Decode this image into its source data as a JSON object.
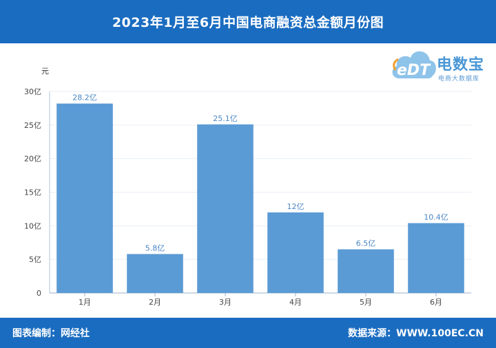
{
  "header": {
    "title": "2023年1月至6月中国电商融资总金额月份图"
  },
  "footer": {
    "left": "图表编制：网经社",
    "right": "数据来源：WWW.100EC.CN"
  },
  "logo": {
    "icon_text": "eDT",
    "name": "电数宝",
    "subtitle": "电商大数据库",
    "icon": "cloud-logo-icon"
  },
  "colors": {
    "header": "#1a6cc0",
    "bar": "#5b9bd5",
    "label": "#4a86c5"
  },
  "chart_data": {
    "type": "bar",
    "unit": "元",
    "categories": [
      "1月",
      "2月",
      "3月",
      "4月",
      "5月",
      "6月"
    ],
    "values": [
      28.2,
      5.8,
      25.1,
      12,
      6.5,
      10.4
    ],
    "value_labels": [
      "28.2亿",
      "5.8亿",
      "25.1亿",
      "12亿",
      "6.5亿",
      "10.4亿"
    ],
    "yticks": [
      0,
      5,
      10,
      15,
      20,
      25,
      30
    ],
    "ytick_labels": [
      "0",
      "5亿",
      "10亿",
      "15亿",
      "20亿",
      "25亿",
      "30亿"
    ],
    "ylim": [
      0,
      30
    ],
    "grid": true
  }
}
